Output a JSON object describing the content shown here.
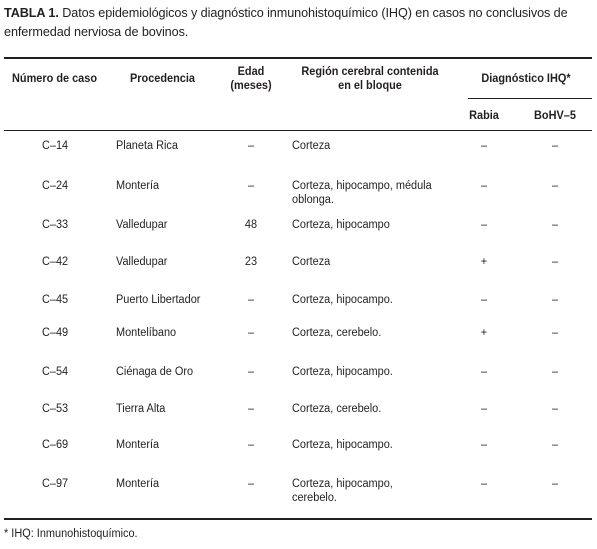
{
  "caption": {
    "label": "TABLA 1.",
    "text": "Datos epidemiológicos y diagnóstico inmunohistoquímico (IHQ) en casos no conclusivos de enfermedad nerviosa de bovinos."
  },
  "headers": {
    "case": "Número de caso",
    "origin": "Procedencia",
    "age_line1": "Edad",
    "age_line2": "(meses)",
    "region_line1": "Región cerebral contenida",
    "region_line2": "en el bloque",
    "ihq_group": "Diagnóstico IHQ*",
    "rabia": "Rabia",
    "bohv": "BoHV–5"
  },
  "rows": [
    {
      "case": "C–14",
      "origin": "Planeta Rica",
      "age": "–",
      "region": "Corteza",
      "region2": "",
      "rabia": "–",
      "bohv": "–"
    },
    {
      "case": "C–24",
      "origin": "Montería",
      "age": "–",
      "region": "Corteza, hipocampo, médula",
      "region2": "oblonga.",
      "rabia": "–",
      "bohv": "–"
    },
    {
      "case": "C–33",
      "origin": "Valledupar",
      "age": "48",
      "region": "Corteza, hipocampo",
      "region2": "",
      "rabia": "–",
      "bohv": "–"
    },
    {
      "case": "C–42",
      "origin": "Valledupar",
      "age": "23",
      "region": "Corteza",
      "region2": "",
      "rabia": "+",
      "bohv": "–"
    },
    {
      "case": "C–45",
      "origin": "Puerto Libertador",
      "age": "–",
      "region": "Corteza, hipocampo.",
      "region2": "",
      "rabia": "–",
      "bohv": "–"
    },
    {
      "case": "C–49",
      "origin": "Montelíbano",
      "age": "–",
      "region": "Corteza, cerebelo.",
      "region2": "",
      "rabia": "+",
      "bohv": "–"
    },
    {
      "case": "C–54",
      "origin": "Ciénaga de Oro",
      "age": "–",
      "region": "Corteza, hipocampo.",
      "region2": "",
      "rabia": "–",
      "bohv": "–"
    },
    {
      "case": "C–53",
      "origin": "Tierra Alta",
      "age": "–",
      "region": "Corteza, cerebelo.",
      "region2": "",
      "rabia": "–",
      "bohv": "–"
    },
    {
      "case": "C–69",
      "origin": "Montería",
      "age": "–",
      "region": "Corteza, hipocampo.",
      "region2": "",
      "rabia": "–",
      "bohv": "–"
    },
    {
      "case": "C–97",
      "origin": "Montería",
      "age": "–",
      "region": "Corteza, hipocampo,",
      "region2": "cerebelo.",
      "rabia": "–",
      "bohv": "–"
    }
  ],
  "footnote": "* IHQ: Inmunohistoquímico."
}
